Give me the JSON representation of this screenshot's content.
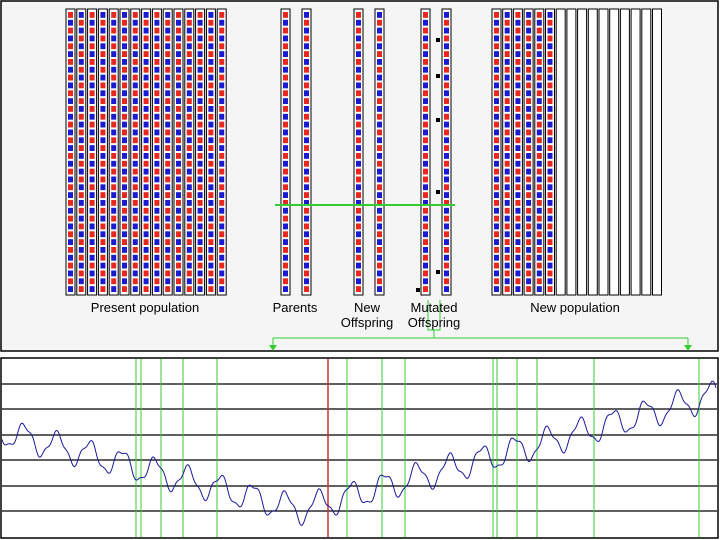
{
  "labels": {
    "present_population": "Present population",
    "parents": "Parents",
    "new_offspring_line1": "New",
    "new_offspring_line2": "Offspring",
    "mutated_offspring_line1": "Mutated",
    "mutated_offspring_line2": "Offspring",
    "new_population": "New population"
  },
  "colors": {
    "gene_a": "#e8281e",
    "gene_b": "#1a1ad0",
    "panel_bg": "#f5f5f5",
    "crossover_line": "#33cc33",
    "curve": "#1a1a9a",
    "marker_line": "#33cc33",
    "selected_marker": "#cc3333"
  },
  "population": {
    "present_count": 15,
    "new_filled": 6,
    "new_empty": 10,
    "genes_per_chromosome": 36
  }
}
